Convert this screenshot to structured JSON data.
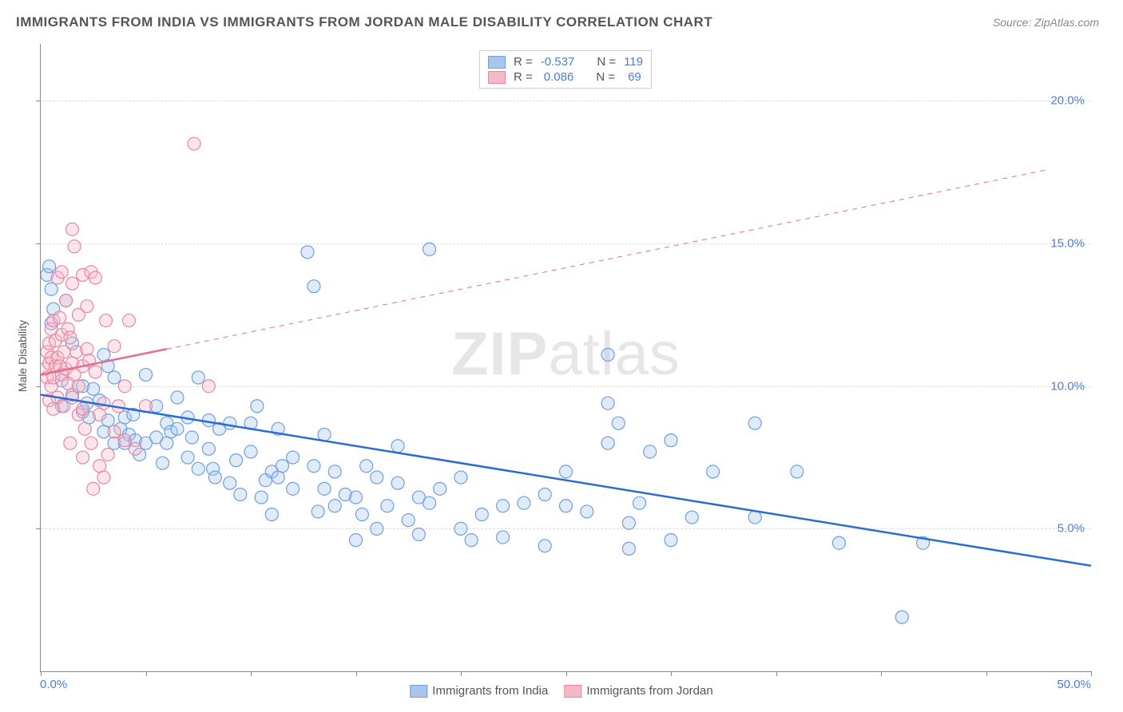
{
  "title": "IMMIGRANTS FROM INDIA VS IMMIGRANTS FROM JORDAN MALE DISABILITY CORRELATION CHART",
  "source_label": "Source: ",
  "source_name": "ZipAtlas.com",
  "watermark": {
    "bold": "ZIP",
    "light": "atlas"
  },
  "ylabel": "Male Disability",
  "chart": {
    "type": "scatter",
    "background_color": "#ffffff",
    "grid_color": "#dddddd",
    "grid_dashed": true,
    "axis_color": "#888888",
    "tick_label_color": "#4a7fd6",
    "xlim": [
      0,
      50
    ],
    "ylim": [
      0,
      22
    ],
    "xtick_positions": [
      0,
      5,
      10,
      15,
      20,
      25,
      30,
      35,
      40,
      45,
      50
    ],
    "ytick_positions": [
      5,
      10,
      15,
      20
    ],
    "ytick_labels": [
      "5.0%",
      "10.0%",
      "15.0%",
      "20.0%"
    ],
    "x_min_label": "0.0%",
    "x_max_label": "50.0%",
    "marker_radius": 8,
    "marker_fill_opacity": 0.35,
    "marker_stroke_width": 1.2,
    "line_width_solid": 2.5,
    "line_width_dashed": 1,
    "series": [
      {
        "id": "india",
        "name": "Immigrants from India",
        "color_fill": "#a7c5ed",
        "color_stroke": "#6f9fde",
        "line_color": "#2a6bd4",
        "r_value": "-0.537",
        "n_value": "119",
        "trend": {
          "x1": 0,
          "y1": 9.7,
          "x2": 50,
          "y2": 3.7,
          "solid_until_x": 50
        },
        "points": [
          [
            0.3,
            13.9
          ],
          [
            0.5,
            13.4
          ],
          [
            0.6,
            12.7
          ],
          [
            0.5,
            12.2
          ],
          [
            0.4,
            14.2
          ],
          [
            1.0,
            10.2
          ],
          [
            1.2,
            13.0
          ],
          [
            1.5,
            11.5
          ],
          [
            1.0,
            9.3
          ],
          [
            1.5,
            9.7
          ],
          [
            2.0,
            10.0
          ],
          [
            2.0,
            9.1
          ],
          [
            2.2,
            9.4
          ],
          [
            2.3,
            8.9
          ],
          [
            2.5,
            9.9
          ],
          [
            2.8,
            9.5
          ],
          [
            3.0,
            11.1
          ],
          [
            3.2,
            10.7
          ],
          [
            3.5,
            10.3
          ],
          [
            3.0,
            8.4
          ],
          [
            3.2,
            8.8
          ],
          [
            3.5,
            8.0
          ],
          [
            3.8,
            8.5
          ],
          [
            4.0,
            8.0
          ],
          [
            4.0,
            8.9
          ],
          [
            4.2,
            8.3
          ],
          [
            4.4,
            9.0
          ],
          [
            4.5,
            8.1
          ],
          [
            4.7,
            7.6
          ],
          [
            5.0,
            8.0
          ],
          [
            5.0,
            10.4
          ],
          [
            5.5,
            9.3
          ],
          [
            5.5,
            8.2
          ],
          [
            5.8,
            7.3
          ],
          [
            6.0,
            8.7
          ],
          [
            6.0,
            8.0
          ],
          [
            6.2,
            8.4
          ],
          [
            6.5,
            9.6
          ],
          [
            6.5,
            8.5
          ],
          [
            7.0,
            7.5
          ],
          [
            7.0,
            8.9
          ],
          [
            7.2,
            8.2
          ],
          [
            7.5,
            10.3
          ],
          [
            7.5,
            7.1
          ],
          [
            8.0,
            7.8
          ],
          [
            8.0,
            8.8
          ],
          [
            8.2,
            7.1
          ],
          [
            8.5,
            8.5
          ],
          [
            8.3,
            6.8
          ],
          [
            9.0,
            6.6
          ],
          [
            9.0,
            8.7
          ],
          [
            9.3,
            7.4
          ],
          [
            9.5,
            6.2
          ],
          [
            10.0,
            7.7
          ],
          [
            10.0,
            8.7
          ],
          [
            10.3,
            9.3
          ],
          [
            10.5,
            6.1
          ],
          [
            10.7,
            6.7
          ],
          [
            11.0,
            7.0
          ],
          [
            11.0,
            5.5
          ],
          [
            11.3,
            8.5
          ],
          [
            11.3,
            6.8
          ],
          [
            11.5,
            7.2
          ],
          [
            12.0,
            6.4
          ],
          [
            12.0,
            7.5
          ],
          [
            12.7,
            14.7
          ],
          [
            13.0,
            13.5
          ],
          [
            13.0,
            7.2
          ],
          [
            13.2,
            5.6
          ],
          [
            13.5,
            6.4
          ],
          [
            13.5,
            8.3
          ],
          [
            14.0,
            7.0
          ],
          [
            14.0,
            5.8
          ],
          [
            14.5,
            6.2
          ],
          [
            15.0,
            6.1
          ],
          [
            15.0,
            4.6
          ],
          [
            15.3,
            5.5
          ],
          [
            15.5,
            7.2
          ],
          [
            16.0,
            6.8
          ],
          [
            16.0,
            5.0
          ],
          [
            16.5,
            5.8
          ],
          [
            17.0,
            7.9
          ],
          [
            17.0,
            6.6
          ],
          [
            17.5,
            5.3
          ],
          [
            18.0,
            4.8
          ],
          [
            18.0,
            6.1
          ],
          [
            18.5,
            14.8
          ],
          [
            18.5,
            5.9
          ],
          [
            19.0,
            6.4
          ],
          [
            20.0,
            6.8
          ],
          [
            20.0,
            5.0
          ],
          [
            20.5,
            4.6
          ],
          [
            21.0,
            5.5
          ],
          [
            22.0,
            5.8
          ],
          [
            22.0,
            4.7
          ],
          [
            23.0,
            5.9
          ],
          [
            24.0,
            6.2
          ],
          [
            24.0,
            4.4
          ],
          [
            25.0,
            5.8
          ],
          [
            25.0,
            7.0
          ],
          [
            26.0,
            5.6
          ],
          [
            27.0,
            9.4
          ],
          [
            27.0,
            11.1
          ],
          [
            27.5,
            8.7
          ],
          [
            27.0,
            8.0
          ],
          [
            28.0,
            5.2
          ],
          [
            28.0,
            4.3
          ],
          [
            28.5,
            5.9
          ],
          [
            29.0,
            7.7
          ],
          [
            30.0,
            4.6
          ],
          [
            30.0,
            8.1
          ],
          [
            31.0,
            5.4
          ],
          [
            32.0,
            7.0
          ],
          [
            34.0,
            8.7
          ],
          [
            34.0,
            5.4
          ],
          [
            36.0,
            7.0
          ],
          [
            38.0,
            4.5
          ],
          [
            41.0,
            1.9
          ],
          [
            42.0,
            4.5
          ]
        ]
      },
      {
        "id": "jordan",
        "name": "Immigrants from Jordan",
        "color_fill": "#f5b8c7",
        "color_stroke": "#e886a3",
        "line_color": "#e06f92",
        "r_value": "0.086",
        "n_value": "69",
        "trend": {
          "x1": 0,
          "y1": 10.4,
          "x2": 48,
          "y2": 17.6,
          "solid_until_x": 6
        },
        "points": [
          [
            0.2,
            10.6
          ],
          [
            0.3,
            10.3
          ],
          [
            0.3,
            11.2
          ],
          [
            0.4,
            10.8
          ],
          [
            0.4,
            11.5
          ],
          [
            0.4,
            9.5
          ],
          [
            0.5,
            10.0
          ],
          [
            0.5,
            12.0
          ],
          [
            0.5,
            11.0
          ],
          [
            0.6,
            12.3
          ],
          [
            0.6,
            10.3
          ],
          [
            0.6,
            9.2
          ],
          [
            0.7,
            10.7
          ],
          [
            0.7,
            11.6
          ],
          [
            0.8,
            13.8
          ],
          [
            0.8,
            11.0
          ],
          [
            0.8,
            9.6
          ],
          [
            0.9,
            10.7
          ],
          [
            0.9,
            12.4
          ],
          [
            1.0,
            11.8
          ],
          [
            1.0,
            10.4
          ],
          [
            1.0,
            14.0
          ],
          [
            1.1,
            11.2
          ],
          [
            1.1,
            9.3
          ],
          [
            1.2,
            10.6
          ],
          [
            1.2,
            13.0
          ],
          [
            1.3,
            10.1
          ],
          [
            1.3,
            12.0
          ],
          [
            1.4,
            11.7
          ],
          [
            1.4,
            8.0
          ],
          [
            1.5,
            10.8
          ],
          [
            1.5,
            9.6
          ],
          [
            1.5,
            13.6
          ],
          [
            1.5,
            15.5
          ],
          [
            1.6,
            14.9
          ],
          [
            1.6,
            10.4
          ],
          [
            1.7,
            11.2
          ],
          [
            1.8,
            9.0
          ],
          [
            1.8,
            10.0
          ],
          [
            1.8,
            12.5
          ],
          [
            2.0,
            10.7
          ],
          [
            2.0,
            7.5
          ],
          [
            2.0,
            9.2
          ],
          [
            2.0,
            13.9
          ],
          [
            2.1,
            8.5
          ],
          [
            2.2,
            12.8
          ],
          [
            2.2,
            11.3
          ],
          [
            2.3,
            10.9
          ],
          [
            2.4,
            8.0
          ],
          [
            2.4,
            14.0
          ],
          [
            2.5,
            6.4
          ],
          [
            2.6,
            13.8
          ],
          [
            2.6,
            10.5
          ],
          [
            2.8,
            9.0
          ],
          [
            2.8,
            7.2
          ],
          [
            3.0,
            9.4
          ],
          [
            3.0,
            6.8
          ],
          [
            3.1,
            12.3
          ],
          [
            3.2,
            7.6
          ],
          [
            3.5,
            8.4
          ],
          [
            3.5,
            11.4
          ],
          [
            3.7,
            9.3
          ],
          [
            4.0,
            10.0
          ],
          [
            4.0,
            8.1
          ],
          [
            4.2,
            12.3
          ],
          [
            4.5,
            7.8
          ],
          [
            5.0,
            9.3
          ],
          [
            7.3,
            18.5
          ],
          [
            8.0,
            10.0
          ]
        ]
      }
    ]
  },
  "legend_top": {
    "r_label": "R =",
    "n_label": "N ="
  },
  "legend_bottom": {
    "items": [
      {
        "swatch_fill": "#a7c5ed",
        "swatch_stroke": "#6f9fde",
        "label": "Immigrants from India"
      },
      {
        "swatch_fill": "#f5b8c7",
        "swatch_stroke": "#e886a3",
        "label": "Immigrants from Jordan"
      }
    ]
  }
}
